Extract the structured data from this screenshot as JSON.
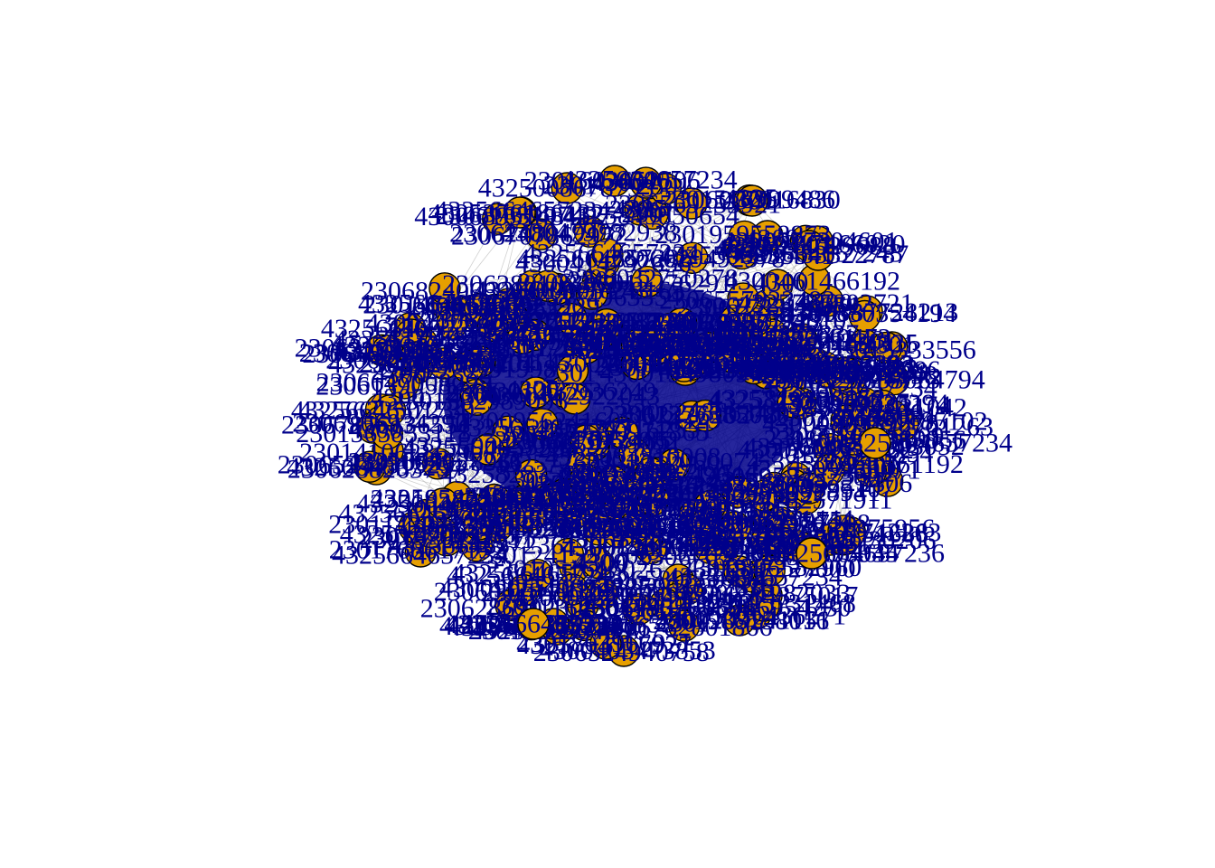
{
  "graph": {
    "node_fill": "#e69f00",
    "node_border": "#000000",
    "label_color": "#00008b",
    "edge_color": "#9a9a9a",
    "background": "#ffffff",
    "visible_labels": [
      "4325664657234",
      "4325664657236",
      "4325664657243",
      "4300",
      "2301",
      "2306",
      "2306",
      "4325",
      "4325"
    ],
    "nodes": [
      {
        "id": "2306...",
        "label": "2306"
      },
      {
        "id": "2301...",
        "label": "2301"
      },
      {
        "id": "2306b",
        "label": "2306"
      },
      {
        "id": "4325664657234",
        "label": "4325664657234"
      },
      {
        "id": "4325664657236",
        "label": "4325664657236"
      },
      {
        "id": "4325664657243",
        "label": "4325664657243"
      },
      {
        "id": "4300a",
        "label": "4300"
      },
      {
        "id": "4300b",
        "label": "4300"
      },
      {
        "id": "2301b",
        "label": "2301"
      },
      {
        "id": "4325a",
        "label": "4325"
      },
      {
        "id": "4325b",
        "label": "4325"
      }
    ]
  }
}
